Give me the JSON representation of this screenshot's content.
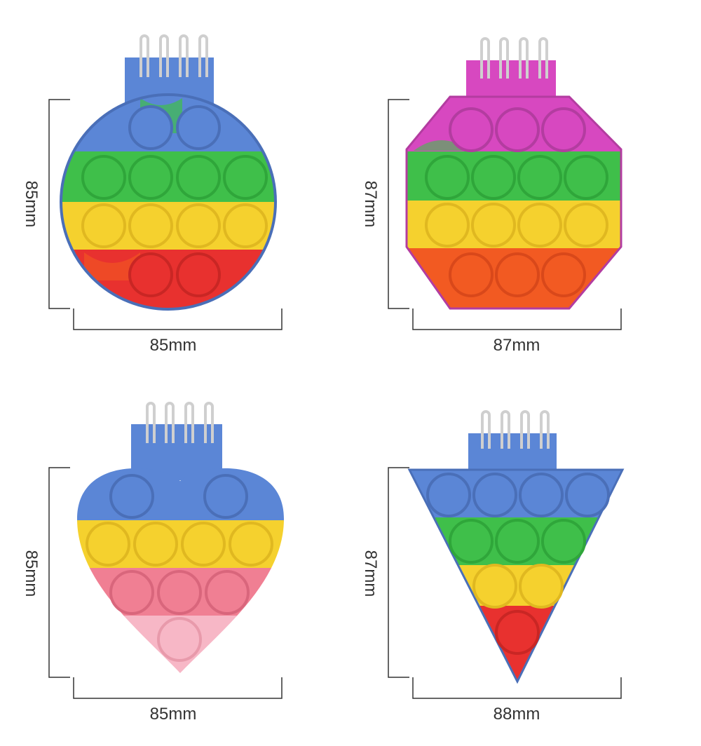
{
  "colors": {
    "blue": "#5b86d6",
    "blue_dark": "#4a6fb8",
    "green": "#3fbf4a",
    "yellow": "#f5d12e",
    "red": "#e8312f",
    "orange": "#f25a22",
    "magenta": "#d748c0",
    "pink": "#f07f93",
    "light_pink": "#f7b7c6",
    "dim_line": "#333333"
  },
  "products": [
    {
      "name": "round",
      "height_label": "85mm",
      "width_label": "85mm"
    },
    {
      "name": "octagon",
      "height_label": "87mm",
      "width_label": "87mm"
    },
    {
      "name": "heart",
      "height_label": "85mm",
      "width_label": "85mm"
    },
    {
      "name": "triangle",
      "height_label": "87mm",
      "width_label": "88mm"
    }
  ]
}
